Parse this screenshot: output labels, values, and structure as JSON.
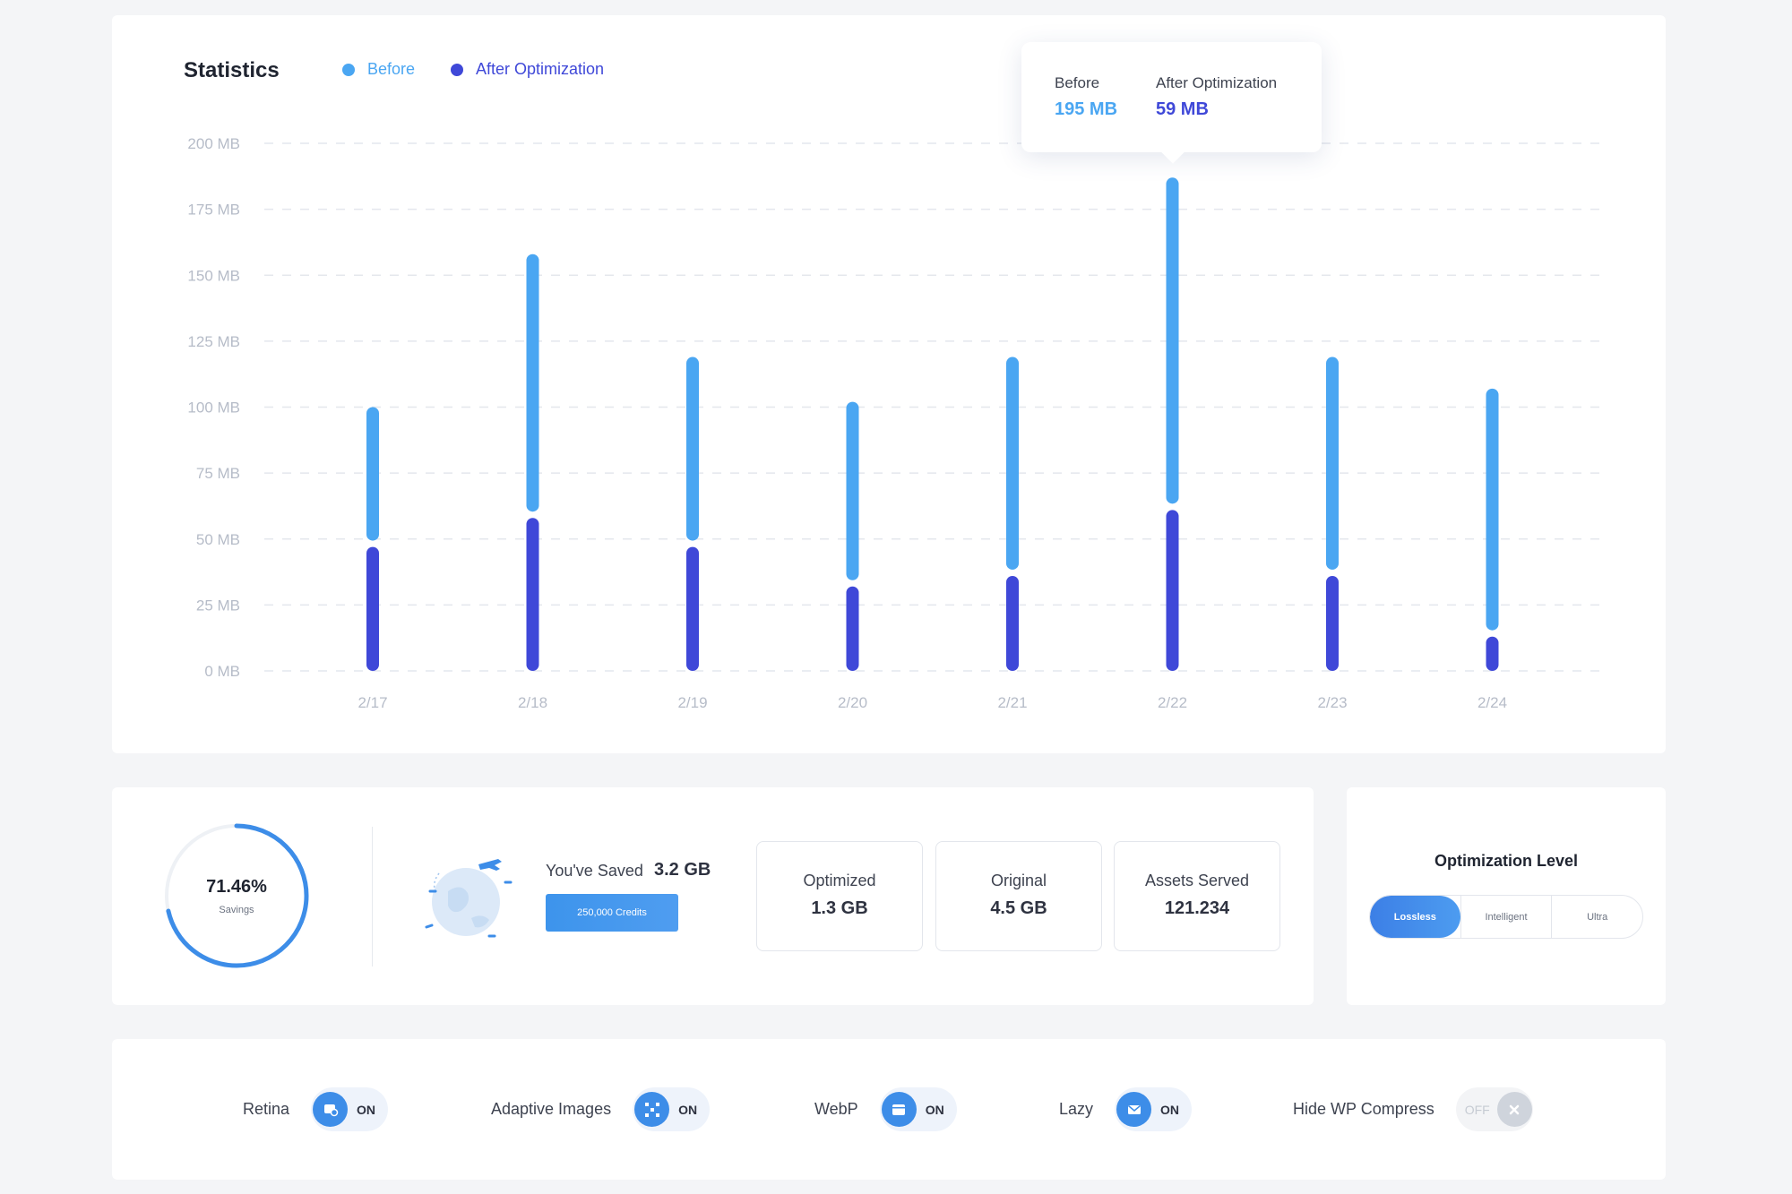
{
  "statistics": {
    "title": "Statistics",
    "legend": {
      "before": "Before",
      "after": "After Optimization"
    },
    "colors": {
      "before": "#4aa6f2",
      "after": "#3f48d8"
    },
    "tooltip": {
      "before_label": "Before",
      "before_value": "195 MB",
      "after_label": "After Optimization",
      "after_value": "59 MB"
    }
  },
  "chart_data": {
    "type": "bar",
    "title": "Statistics",
    "categories": [
      "2/17",
      "2/18",
      "2/19",
      "2/20",
      "2/21",
      "2/22",
      "2/23",
      "2/24"
    ],
    "y_tick_labels": [
      "0 MB",
      "25 MB",
      "50 MB",
      "75 MB",
      "100 MB",
      "125 MB",
      "150 MB",
      "175 MB",
      "200 MB"
    ],
    "ylim": [
      0,
      200
    ],
    "grid": true,
    "legend_position": "top-left",
    "series": [
      {
        "name": "Before",
        "values": [
          100,
          158,
          119,
          102,
          119,
          187,
          119,
          107
        ]
      },
      {
        "name": "After Optimization",
        "values": [
          47,
          58,
          47,
          32,
          36,
          61,
          36,
          13
        ]
      }
    ]
  },
  "summary": {
    "savings_percent": "71.46%",
    "savings_label": "Savings",
    "savings_fraction": 0.7146,
    "saved_text": "You've Saved",
    "saved_value": "3.2 GB",
    "credits_button": "250,000 Credits",
    "metrics": [
      {
        "label": "Optimized",
        "value": "1.3 GB"
      },
      {
        "label": "Original",
        "value": "4.5 GB"
      },
      {
        "label": "Assets Served",
        "value": "121.234"
      }
    ]
  },
  "optimization_level": {
    "title": "Optimization Level",
    "options": [
      "Lossless",
      "Intelligent",
      "Ultra"
    ],
    "selected": "Lossless"
  },
  "features": [
    {
      "label": "Retina",
      "state": "ON",
      "icon": "retina-icon"
    },
    {
      "label": "Adaptive Images",
      "state": "ON",
      "icon": "adaptive-icon"
    },
    {
      "label": "WebP",
      "state": "ON",
      "icon": "webp-icon"
    },
    {
      "label": "Lazy",
      "state": "ON",
      "icon": "lazy-icon"
    },
    {
      "label": "Hide WP Compress",
      "state": "OFF",
      "icon": "close-icon"
    }
  ]
}
